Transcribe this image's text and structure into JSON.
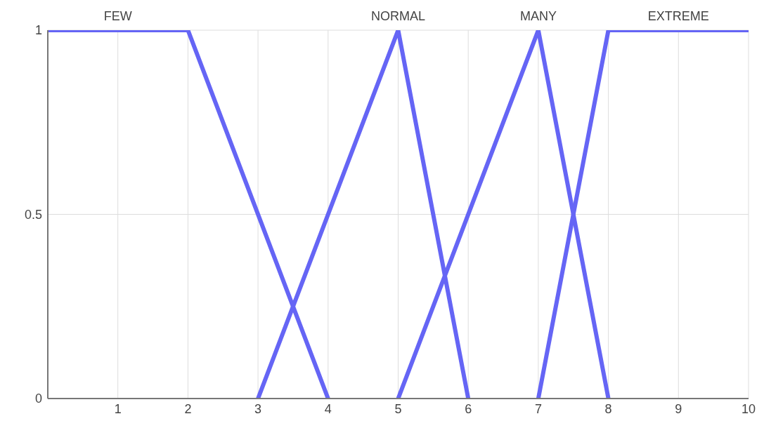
{
  "chart_data": {
    "type": "line",
    "series": [
      {
        "name": "FEW",
        "color": "#6565f5",
        "x": [
          0,
          2,
          4
        ],
        "values": [
          1,
          1,
          0
        ]
      },
      {
        "name": "NORMAL",
        "color": "#6565f5",
        "x": [
          3,
          5,
          6
        ],
        "values": [
          0,
          1,
          0
        ]
      },
      {
        "name": "MANY",
        "color": "#6565f5",
        "x": [
          5,
          7,
          8
        ],
        "values": [
          0,
          1,
          0
        ]
      },
      {
        "name": "EXTREME",
        "color": "#6565f5",
        "x": [
          7,
          8,
          10
        ],
        "values": [
          0,
          1,
          1
        ]
      }
    ],
    "xlim": [
      0,
      10
    ],
    "xticks": [
      {
        "value": 0,
        "label": null
      },
      1,
      2,
      3,
      4,
      5,
      6,
      7,
      8,
      9,
      10
    ],
    "ylim": [
      0,
      1
    ],
    "yticks": [
      0,
      0.5,
      1
    ],
    "grid": true,
    "marker": "none",
    "line_style": "solid"
  }
}
